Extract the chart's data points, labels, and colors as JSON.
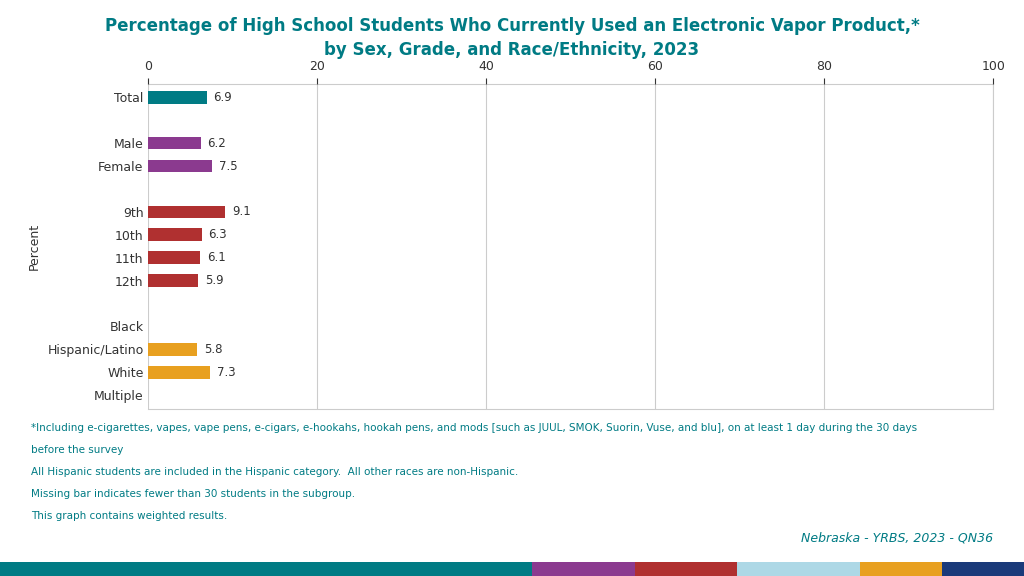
{
  "title": "Percentage of High School Students Who Currently Used an Electronic Vapor Product,*\nby Sex, Grade, and Race/Ethnicity, 2023",
  "title_color": "#007B84",
  "categories": [
    "Total",
    "",
    "Male",
    "Female",
    "",
    "9th",
    "10th",
    "11th",
    "12th",
    "",
    "Black",
    "Hispanic/Latino",
    "White",
    "Multiple"
  ],
  "values": [
    6.9,
    null,
    6.2,
    7.5,
    null,
    9.1,
    6.3,
    6.1,
    5.9,
    null,
    null,
    5.8,
    7.3,
    null
  ],
  "bar_colors": [
    "#007B84",
    null,
    "#8B3A8F",
    "#8B3A8F",
    null,
    "#B03030",
    "#B03030",
    "#B03030",
    "#B03030",
    null,
    null,
    "#E8A020",
    "#E8A020",
    null
  ],
  "xlim": [
    0,
    100
  ],
  "xticks": [
    0,
    20,
    40,
    60,
    80,
    100
  ],
  "ylabel": "Percent",
  "footnote_line1": "*Including e-cigarettes, vapes, vape pens, e-cigars, e-hookahs, hookah pens, and mods [such as JUUL, SMOK, Suorin, Vuse, and blu], on at least 1 day during the 30 days",
  "footnote_line1b": "before the survey",
  "footnote_line2": "All Hispanic students are included in the Hispanic category.  All other races are non-Hispanic.",
  "footnote_line3": "Missing bar indicates fewer than 30 students in the subgroup.",
  "footnote_line4": "This graph contains weighted results.",
  "source_text": "Nebraska - YRBS, 2023 - QN36",
  "source_color": "#007B84",
  "text_color": "#007B84",
  "footer_colors": [
    "#007B84",
    "#8B3A8F",
    "#B03030",
    "#ADD8E6",
    "#E8A020",
    "#1A3A7A"
  ],
  "footer_widths": [
    0.52,
    0.1,
    0.1,
    0.12,
    0.08,
    0.08
  ],
  "bar_height": 0.55,
  "background_color": "#FFFFFF",
  "grid_color": "#CCCCCC",
  "value_label_color": "#333333",
  "yticklabel_fontsize": 9,
  "xlabel_fontsize": 9,
  "footnote_fontsize": 7.5,
  "title_fontsize": 12
}
